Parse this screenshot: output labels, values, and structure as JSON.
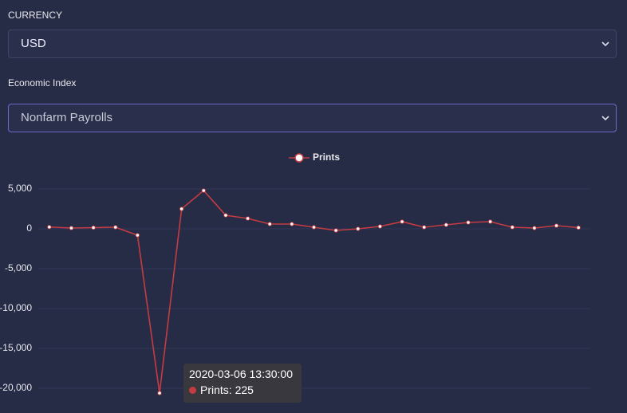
{
  "form": {
    "currency_label": "CURRENCY",
    "currency_value": "USD",
    "index_label": "Economic Index",
    "index_value": "Nonfarm Payrolls"
  },
  "chart_data": {
    "type": "line",
    "series": [
      {
        "name": "Prints",
        "color": "#c43c42",
        "values": [
          225,
          100,
          150,
          200,
          -800,
          -20600,
          2500,
          4800,
          1700,
          1300,
          600,
          600,
          200,
          -200,
          0,
          300,
          900,
          200,
          500,
          800,
          900,
          200,
          100,
          400,
          150
        ]
      }
    ],
    "ylim": [
      -23100,
      6700
    ],
    "yticks": [
      {
        "value": 5000,
        "label": "5,000"
      },
      0,
      {
        "value": -5000,
        "label": "-5,000"
      },
      {
        "value": -10000,
        "label": "-10,000"
      },
      {
        "value": -15000,
        "label": "-15,000"
      },
      {
        "value": -20000,
        "label": "-20,000"
      }
    ],
    "grid": true,
    "legend": "top",
    "tooltip": {
      "title": "2020-03-06 13:30:00",
      "text": "Prints: 225"
    }
  }
}
